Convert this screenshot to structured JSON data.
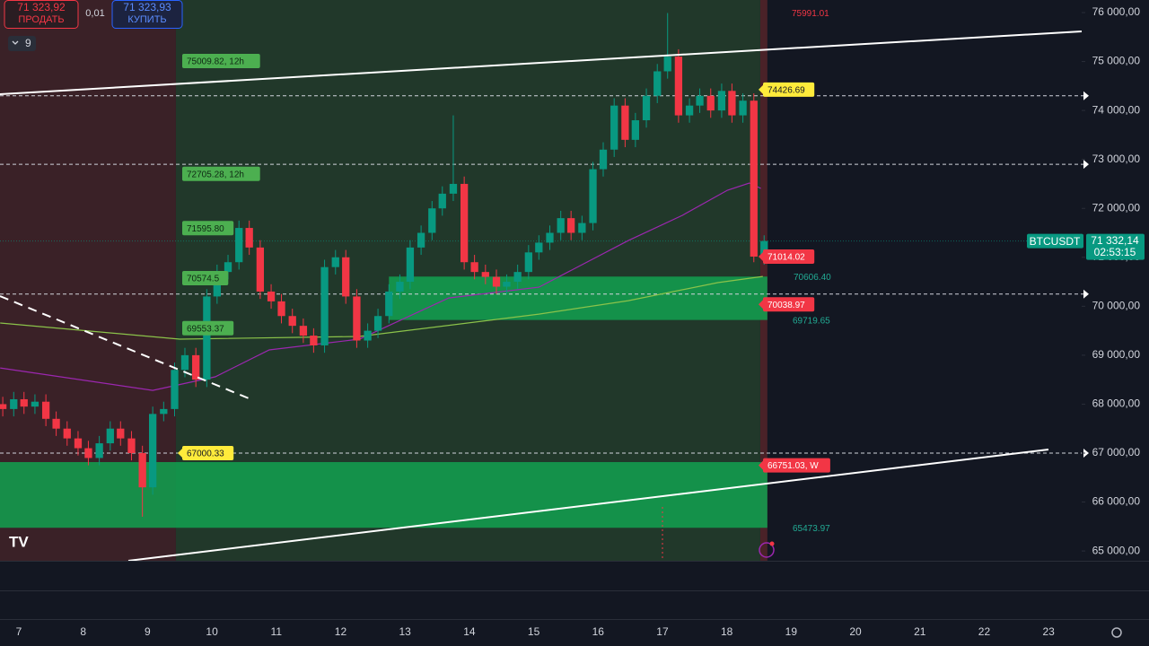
{
  "header": {
    "sell_price": "71 323,92",
    "sell_label": "ПРОДАТЬ",
    "spread": "0,01",
    "buy_price": "71 323,93",
    "buy_label": "КУПИТЬ",
    "indicators_count": "9"
  },
  "chart_data": {
    "type": "candlestick",
    "symbol": "BTCUSDT",
    "last_price_label": "71 332,14",
    "countdown": "02:53:15",
    "up_color": "#089981",
    "down_color": "#f23645",
    "x": [
      6.75,
      6.92,
      7.08,
      7.25,
      7.42,
      7.58,
      7.75,
      7.92,
      8.08,
      8.25,
      8.42,
      8.58,
      8.75,
      8.92,
      9.08,
      9.25,
      9.42,
      9.58,
      9.75,
      9.92,
      10.08,
      10.25,
      10.42,
      10.58,
      10.75,
      10.92,
      11.08,
      11.25,
      11.42,
      11.58,
      11.75,
      11.92,
      12.08,
      12.25,
      12.42,
      12.58,
      12.75,
      12.92,
      13.08,
      13.25,
      13.42,
      13.58,
      13.75,
      13.92,
      14.08,
      14.25,
      14.42,
      14.58,
      14.75,
      14.92,
      15.08,
      15.25,
      15.42,
      15.58,
      15.75,
      15.92,
      16.08,
      16.25,
      16.42,
      16.58,
      16.75,
      16.92,
      17.08,
      17.25,
      17.42,
      17.58,
      17.75,
      17.92,
      18.08,
      18.25,
      18.42,
      18.58
    ],
    "open": [
      68000,
      67900,
      68100,
      67950,
      68050,
      67700,
      67500,
      67300,
      67100,
      66900,
      67200,
      67500,
      67300,
      67000,
      66300,
      67800,
      67900,
      68700,
      69000,
      68500,
      70200,
      70700,
      70900,
      71600,
      71200,
      70300,
      70100,
      69800,
      69600,
      69400,
      69200,
      70800,
      71000,
      70200,
      69300,
      69500,
      69800,
      70300,
      70500,
      71200,
      71500,
      72000,
      72300,
      72500,
      70900,
      70700,
      70600,
      70400,
      70500,
      70700,
      71100,
      71300,
      71500,
      71800,
      71500,
      71700,
      72800,
      73200,
      74100,
      73400,
      73800,
      74300,
      74800,
      75100,
      73900,
      74100,
      74300,
      74000,
      74400,
      73900,
      74200,
      71014.02
    ],
    "high": [
      68150,
      68250,
      68250,
      68200,
      68200,
      67850,
      67650,
      67450,
      67250,
      67350,
      67650,
      67650,
      67450,
      67150,
      67950,
      68050,
      68850,
      69150,
      69150,
      70350,
      70850,
      71050,
      71750,
      71750,
      71350,
      70450,
      70250,
      69950,
      69750,
      69550,
      70950,
      71150,
      71150,
      70350,
      69650,
      69950,
      70450,
      70650,
      71350,
      71650,
      72150,
      72450,
      73900,
      72650,
      71050,
      70850,
      70750,
      70650,
      70850,
      71250,
      71450,
      71650,
      71950,
      71950,
      71850,
      72950,
      73350,
      74250,
      74250,
      73950,
      74450,
      74950,
      75991.01,
      75250,
      74250,
      74450,
      74450,
      74550,
      74550,
      74350,
      74350,
      71450
    ],
    "low": [
      67750,
      67750,
      67800,
      67800,
      67550,
      67350,
      67150,
      66950,
      66750,
      66750,
      67050,
      67150,
      66850,
      65700,
      66150,
      67650,
      67750,
      68550,
      68350,
      68350,
      70050,
      70550,
      70750,
      71050,
      70150,
      69950,
      69650,
      69450,
      69250,
      69050,
      69050,
      70650,
      70050,
      69150,
      69150,
      69350,
      69650,
      70150,
      70350,
      71050,
      71350,
      71850,
      72150,
      70750,
      70550,
      70450,
      70250,
      70250,
      70350,
      70550,
      70950,
      71150,
      71350,
      71350,
      71350,
      71550,
      72650,
      73050,
      73250,
      73250,
      73650,
      74150,
      74650,
      73750,
      73750,
      73950,
      73850,
      73850,
      73750,
      73750,
      70900,
      70850
    ],
    "close": [
      67900,
      68100,
      67950,
      68050,
      67700,
      67500,
      67300,
      67100,
      66900,
      67200,
      67500,
      67300,
      67000,
      66300,
      67800,
      67900,
      68700,
      69000,
      68500,
      70200,
      70700,
      70900,
      71600,
      71200,
      70300,
      70100,
      69800,
      69600,
      69400,
      69200,
      70800,
      71000,
      70200,
      69300,
      69500,
      69800,
      70300,
      70500,
      71200,
      71500,
      72000,
      72300,
      72500,
      70900,
      70700,
      70600,
      70400,
      70500,
      70700,
      71100,
      71300,
      71500,
      71800,
      71500,
      71700,
      72800,
      73200,
      74100,
      73400,
      73800,
      74300,
      74800,
      75100,
      73900,
      74100,
      74300,
      74000,
      74400,
      73900,
      74200,
      71014.02,
      71332.14
    ],
    "xlim": [
      6.707,
      23.514
    ],
    "xticks": [
      7,
      8,
      9,
      10,
      11,
      12,
      13,
      14,
      15,
      16,
      17,
      18,
      19,
      20,
      21,
      22,
      23
    ],
    "ylim": [
      64800,
      76257
    ],
    "yticks": [
      {
        "value": 65000,
        "label": "65 000,00"
      },
      {
        "value": 66000,
        "label": "66 000,00"
      },
      {
        "value": 67000,
        "label": "67 000,00"
      },
      {
        "value": 68000,
        "label": "68 000,00"
      },
      {
        "value": 69000,
        "label": "69 000,00"
      },
      {
        "value": 70000,
        "label": "70 000,00"
      },
      {
        "value": 71000,
        "label": "71 000,00"
      },
      {
        "value": 72000,
        "label": "72 000,00"
      },
      {
        "value": 73000,
        "label": "73 000,00"
      },
      {
        "value": 74000,
        "label": "74 000,00"
      },
      {
        "value": 75000,
        "label": "75 000,00"
      },
      {
        "value": 76000,
        "label": "76 000,00"
      }
    ],
    "grid": false,
    "sessions": [
      {
        "start": 6.707,
        "end": 9.44,
        "color": "#3a2127"
      },
      {
        "start": 9.44,
        "end": 18.52,
        "color": "#21382a"
      },
      {
        "start": 18.52,
        "end": 18.63,
        "color": "#4a2228"
      }
    ],
    "zones": [
      {
        "start": 12.75,
        "end": 18.63,
        "from": 69719.65,
        "to": 70606.4,
        "color": "#12a150"
      },
      {
        "start": 6.707,
        "end": 18.63,
        "from": 65473.97,
        "to": 66816,
        "color": "#12a150"
      }
    ],
    "levels": [
      74300,
      72900,
      70250,
      67000
    ],
    "moving_averages": [
      {
        "color": "#9c27b0",
        "x": [
          6.71,
          9.08,
          10.05,
          10.89,
          12.29,
          13.68,
          15.08,
          16.47,
          17.31,
          18.01,
          18.35,
          18.53
        ],
        "values": [
          68740,
          68282,
          68557,
          69107,
          69327,
          70170,
          70390,
          71343,
          71857,
          72370,
          72517,
          72407
        ]
      },
      {
        "color": "#8bc34a",
        "x": [
          6.71,
          9.5,
          12.29,
          15.08,
          16.47,
          17.86,
          18.56
        ],
        "values": [
          69657,
          69327,
          69382,
          69840,
          70115,
          70482,
          70610
        ]
      }
    ],
    "annotations": [
      {
        "value": 75991.01,
        "label": "75991.01",
        "style": "red-text"
      },
      {
        "value": 75009.82,
        "label": "75009.82, 12h",
        "style": "green-box"
      },
      {
        "value": 74426.69,
        "label": "74426.69",
        "style": "yellow-box"
      },
      {
        "value": 72705.28,
        "label": "72705.28, 12h",
        "style": "green-box"
      },
      {
        "value": 71595.8,
        "label": "71595.80",
        "style": "green-box"
      },
      {
        "value": 71014.02,
        "label": "71014.02",
        "style": "red-box"
      },
      {
        "value": 70606.4,
        "label": "70606.40",
        "style": "green-text"
      },
      {
        "value": 70574.5,
        "label": "70574.5",
        "style": "green-box"
      },
      {
        "value": 70038.97,
        "label": "70038.97",
        "style": "red-box"
      },
      {
        "value": 69719.65,
        "label": "69719.65",
        "style": "green-text"
      },
      {
        "value": 69553.37,
        "label": "69553.37",
        "style": "green-box"
      },
      {
        "value": 67000.33,
        "label": "67000.33",
        "style": "yellow-box"
      },
      {
        "value": 66751.03,
        "label": "66751.03, W",
        "style": "red-box"
      },
      {
        "value": 65473.97,
        "label": "65473.97",
        "style": "green-text"
      }
    ]
  }
}
